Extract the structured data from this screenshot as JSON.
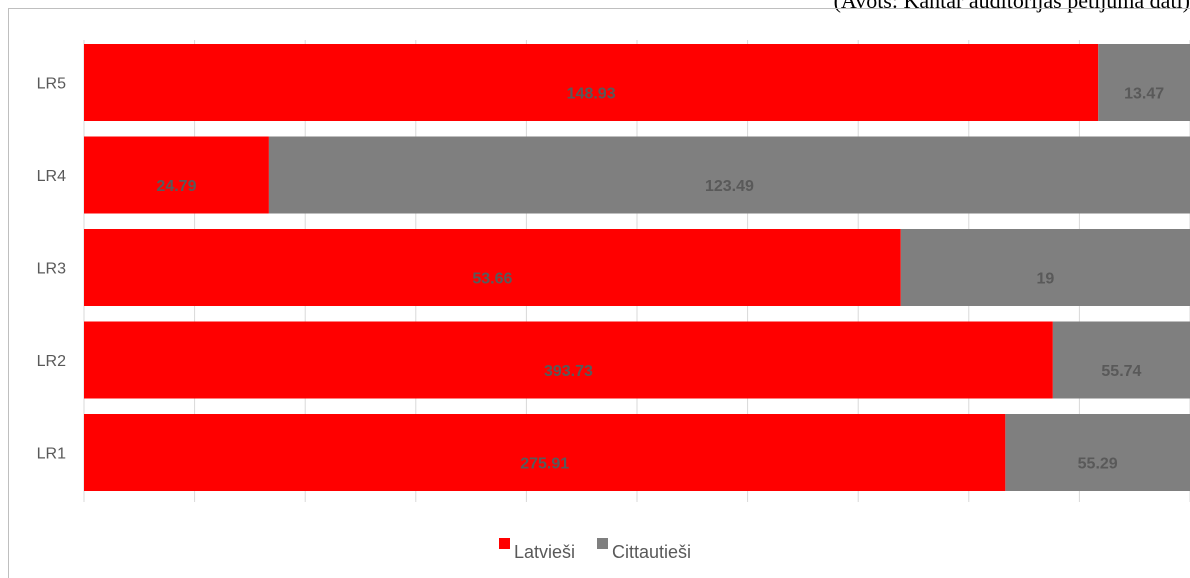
{
  "source_note": "(Avots: Kantar auditorijas pētījuma dati)",
  "chart_data": {
    "type": "bar",
    "orientation": "horizontal",
    "stacking": "percent",
    "categories": [
      "LR1",
      "LR2",
      "LR3",
      "LR4",
      "LR5"
    ],
    "series": [
      {
        "name": "Latvieši",
        "values": [
          275.91,
          393.73,
          53.66,
          24.79,
          148.93
        ],
        "color": "#ff0000"
      },
      {
        "name": "Cittautieši",
        "values": [
          55.29,
          55.74,
          19,
          123.49,
          13.47
        ],
        "color": "#7f7f7f"
      }
    ],
    "label_color": "#595959",
    "xlim": [
      0,
      1
    ],
    "grid": true,
    "legend_position": "bottom"
  }
}
